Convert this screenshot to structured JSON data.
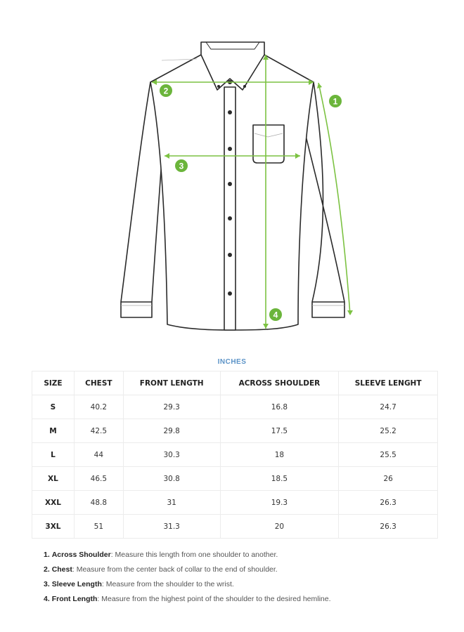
{
  "diagram": {
    "markers": [
      "1",
      "2",
      "3",
      "4"
    ],
    "accent_color": "#7cc242",
    "marker_color": "#6bb53b"
  },
  "unit_label": "INCHES",
  "table": {
    "headers": [
      "SIZE",
      "CHEST",
      "FRONT LENGTH",
      "ACROSS SHOULDER",
      "SLEEVE LENGHT"
    ],
    "rows": [
      [
        "S",
        "40.2",
        "29.3",
        "16.8",
        "24.7"
      ],
      [
        "M",
        "42.5",
        "29.8",
        "17.5",
        "25.2"
      ],
      [
        "L",
        "44",
        "30.3",
        "18",
        "25.5"
      ],
      [
        "XL",
        "46.5",
        "30.8",
        "18.5",
        "26"
      ],
      [
        "XXL",
        "48.8",
        "31",
        "19.3",
        "26.3"
      ],
      [
        "3XL",
        "51",
        "31.3",
        "20",
        "26.3"
      ]
    ]
  },
  "notes": [
    {
      "num": "1.",
      "term": "Across Shoulder",
      "text": ": Measure this length from one shoulder to another."
    },
    {
      "num": "2.",
      "term": "Chest",
      "text": ": Measure from the center back of collar to the end of shoulder."
    },
    {
      "num": "3.",
      "term": "Sleeve Length",
      "text": ": Measure from the shoulder to the wrist."
    },
    {
      "num": "4.",
      "term": "Front Length",
      "text": ": Measure from the highest point of the shoulder to the desired hemline."
    }
  ]
}
